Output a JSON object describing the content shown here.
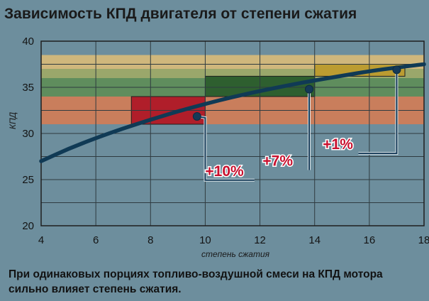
{
  "chart_data": {
    "type": "line",
    "title": "Зависимость КПД двигателя от степени сжатия",
    "xlabel": "степень сжатия",
    "ylabel": "КПД",
    "xlim": [
      4,
      18
    ],
    "ylim": [
      20,
      40
    ],
    "xticks": [
      "4",
      "6",
      "8",
      "10",
      "12",
      "14",
      "16",
      "18"
    ],
    "yticks": [
      "20",
      "25",
      "30",
      "35",
      "40"
    ],
    "grid": true,
    "series": [
      {
        "color": "#103a55",
        "x": [
          4,
          5,
          6,
          7,
          8,
          9,
          10,
          11,
          12,
          13,
          14,
          15,
          16,
          17,
          18
        ],
        "y": [
          27.0,
          28.35,
          29.5,
          30.55,
          31.5,
          32.4,
          33.2,
          33.95,
          34.6,
          35.2,
          35.75,
          36.25,
          36.75,
          37.15,
          37.5
        ]
      }
    ],
    "bands": [
      {
        "y0": 31.0,
        "y1": 34.0,
        "color": "#c97e5c"
      },
      {
        "y0": 34.0,
        "y1": 36.0,
        "color": "#5f8d5d"
      },
      {
        "y0": 36.0,
        "y1": 37.0,
        "color": "#9aa76b"
      },
      {
        "y0": 37.0,
        "y1": 38.5,
        "color": "#cfb77c"
      }
    ],
    "regions": [
      {
        "x0": 7.3,
        "x1": 10.0,
        "y0": 31.0,
        "y1": 34.0,
        "color": "#b01e2a"
      },
      {
        "x0": 10.0,
        "x1": 14.0,
        "y0": 34.0,
        "y1": 36.2,
        "color": "#2e5f2f"
      },
      {
        "x0": 14.0,
        "x1": 17.3,
        "y0": 36.2,
        "y1": 37.5,
        "color": "#bb9c31"
      }
    ],
    "annotations": [
      {
        "text": "+10%",
        "point": [
          9.7,
          31.85
        ],
        "label_at": [
          10.0,
          25.4
        ],
        "line_end": 11.8
      },
      {
        "text": "+7%",
        "point": [
          13.8,
          34.8
        ],
        "label_at": [
          12.1,
          26.5
        ],
        "line_end": 13.8
      },
      {
        "text": "+1%",
        "point": [
          17.0,
          36.9
        ],
        "label_at": [
          14.3,
          28.3
        ],
        "line_end": 15.6
      }
    ]
  },
  "caption": "При одинаковых порциях топливо-воздушной смеси на КПД мотора сильно влияет степень сжатия."
}
